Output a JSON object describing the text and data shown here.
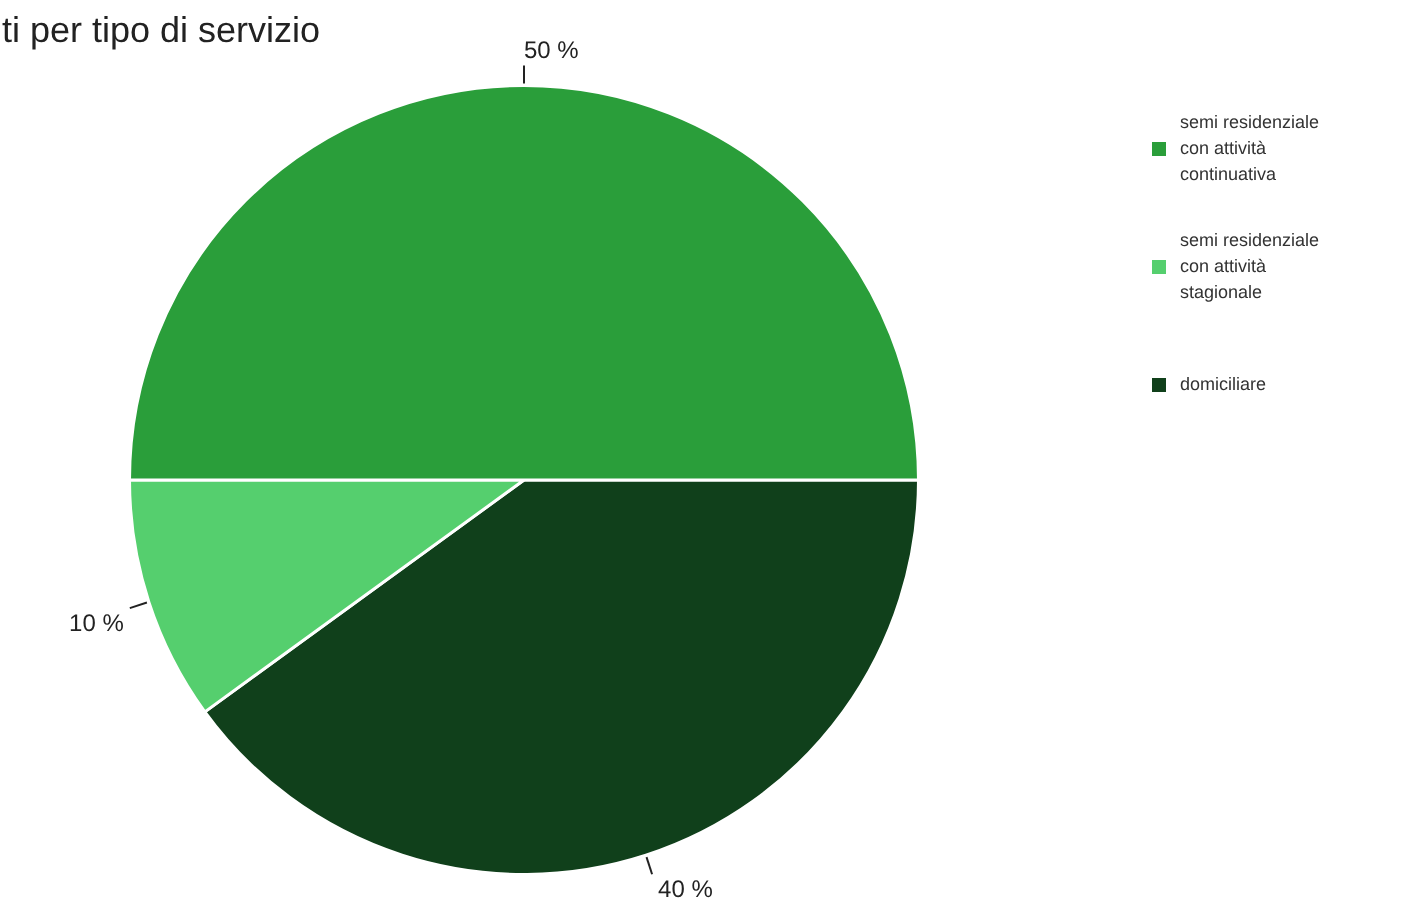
{
  "chart_data": {
    "type": "pie",
    "title": "ti per tipo di servizio",
    "categories": [
      "semi residenziale con attività continuativa",
      "semi residenziale con attività stagionale",
      "domiciliare"
    ],
    "values": [
      50,
      10,
      40
    ],
    "colors": [
      "#2a9e3a",
      "#55cf6e",
      "#10401b"
    ],
    "value_labels": [
      "50 %",
      "10 %",
      "40 %"
    ],
    "legend": "right"
  }
}
